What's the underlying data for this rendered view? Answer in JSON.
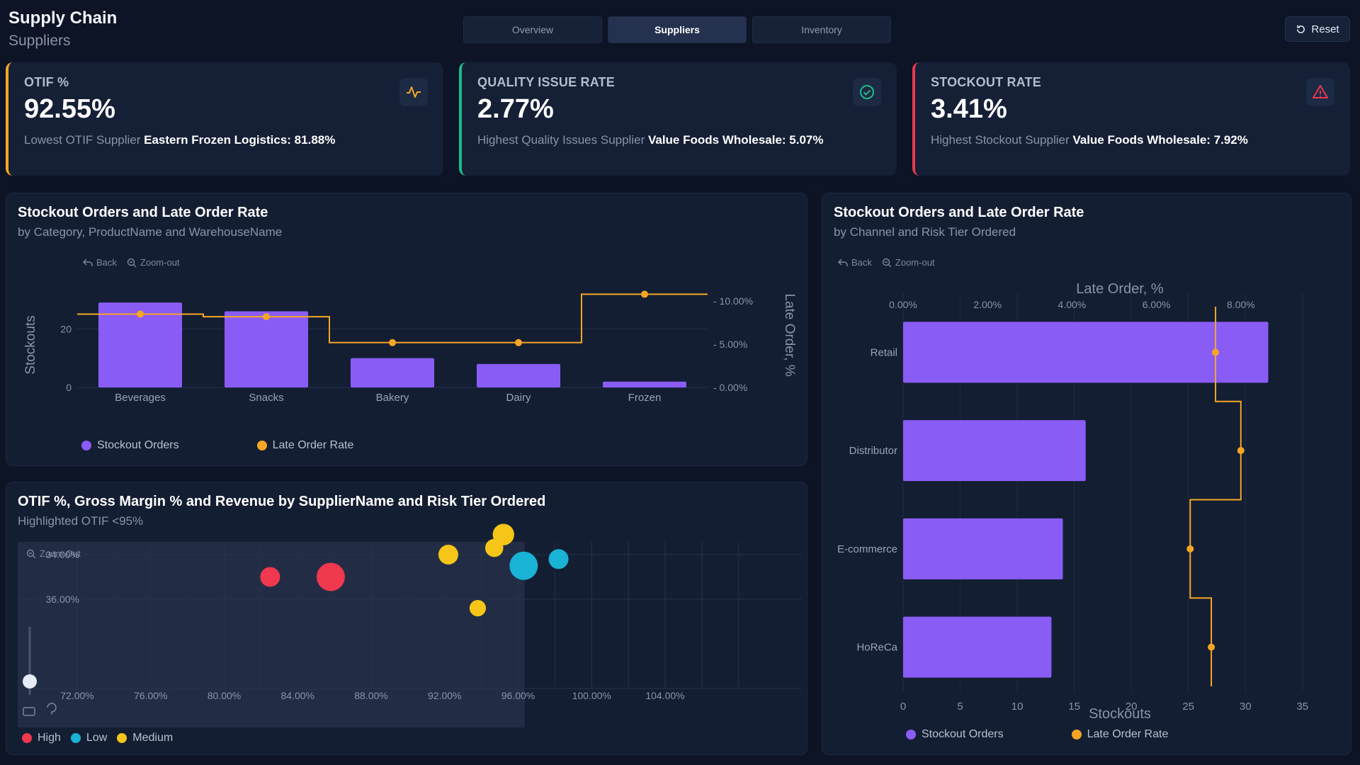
{
  "header": {
    "title": "Supply Chain",
    "subtitle": "Suppliers",
    "tabs": [
      "Overview",
      "Suppliers",
      "Inventory"
    ],
    "active_tab": "Suppliers",
    "reset_label": "Reset"
  },
  "kpis": [
    {
      "label": "OTIF %",
      "value": "92.55%",
      "note_prefix": "Lowest OTIF Supplier",
      "note_value": "Eastern Frozen Logistics: 81.88%",
      "accent": "#f5a623",
      "icon": "pulse-icon"
    },
    {
      "label": "QUALITY ISSUE RATE",
      "value": "2.77%",
      "note_prefix": "Highest Quality Issues Supplier",
      "note_value": "Value Foods Wholesale: 5.07%",
      "accent": "#1fb98a",
      "icon": "check-circle-icon"
    },
    {
      "label": "STOCKOUT RATE",
      "value": "3.41%",
      "note_prefix": "Highest Stockout Supplier",
      "note_value": "Value Foods Wholesale: 7.92%",
      "accent": "#e8384f",
      "icon": "warning-icon"
    }
  ],
  "controls": {
    "back": "Back",
    "zoom_out": "Zoom-out",
    "zoom_out_alt": "Zoom Out"
  },
  "colors": {
    "bar": "#8a5cf6",
    "line": "#f5a623",
    "high": "#f0384f",
    "low": "#19b3d6",
    "medium": "#f5c518"
  },
  "panel_category": {
    "title": "Stockout Orders and Late Order Rate",
    "subtitle": "by Category, ProductName and WarehouseName",
    "legend": [
      "Stockout Orders",
      "Late Order Rate"
    ]
  },
  "panel_channel": {
    "title": "Stockout Orders and Late Order Rate",
    "subtitle": "by Channel and Risk Tier Ordered",
    "legend": [
      "Stockout Orders",
      "Late Order Rate"
    ]
  },
  "panel_scatter": {
    "title": "OTIF %, Gross Margin % and Revenue by SupplierName and Risk Tier Ordered",
    "subtitle": "Highlighted OTIF <95%",
    "legend": [
      "High",
      "Low",
      "Medium"
    ]
  },
  "chart_data": [
    {
      "type": "bar",
      "categories": [
        "Beverages",
        "Snacks",
        "Bakery",
        "Dairy",
        "Frozen"
      ],
      "series": [
        {
          "name": "Stockout Orders",
          "axis": "left",
          "values": [
            29,
            26,
            10,
            8,
            2
          ]
        },
        {
          "name": "Late Order Rate",
          "axis": "right",
          "type": "step-line",
          "values": [
            8.5,
            8.2,
            5.2,
            5.2,
            10.8
          ]
        }
      ],
      "ylabel": "Stockouts",
      "ylabel_right": "Late Order, %",
      "yticks": [
        "0",
        "20"
      ],
      "yticks_right": [
        "0.00%",
        "5.00%",
        "10.00%"
      ],
      "ylim": [
        0,
        30
      ],
      "ylim_right": [
        0,
        11
      ]
    },
    {
      "type": "bar",
      "orientation": "horizontal",
      "categories": [
        "Retail",
        "Distributor",
        "E-commerce",
        "HoReCa"
      ],
      "series": [
        {
          "name": "Stockout Orders",
          "values": [
            32,
            16,
            14,
            13
          ]
        },
        {
          "name": "Late Order Rate",
          "type": "step-line",
          "values": [
            7.4,
            8.0,
            6.8,
            7.3
          ]
        }
      ],
      "xlabel": "Stockouts",
      "xlabel_top": "Late Order, %",
      "xticks": [
        "0",
        "5",
        "10",
        "15",
        "20",
        "25",
        "30",
        "35"
      ],
      "xticks_top": [
        "0.00%",
        "2.00%",
        "4.00%",
        "6.00%",
        "8.00%"
      ],
      "xlim": [
        0,
        37
      ],
      "xlim_top": [
        0,
        10
      ]
    },
    {
      "type": "scatter",
      "xticks": [
        "72.00%",
        "76.00%",
        "80.00%",
        "84.00%",
        "88.00%",
        "92.00%",
        "96.00%",
        "100.00%",
        "104.00%"
      ],
      "yticks": [
        "34.00%",
        "36.00%"
      ],
      "xlim": [
        68,
        108
      ],
      "ylim": [
        32.5,
        37
      ],
      "highlight_max_x": 95,
      "series": [
        {
          "name": "High",
          "points": [
            {
              "x": 82.5,
              "y": 35.0,
              "size": 1
            },
            {
              "x": 85.8,
              "y": 35.0,
              "size": 2
            }
          ]
        },
        {
          "name": "Low",
          "points": [
            {
              "x": 96.3,
              "y": 34.5,
              "size": 2
            },
            {
              "x": 98.2,
              "y": 34.2,
              "size": 1
            }
          ]
        },
        {
          "name": "Medium",
          "points": [
            {
              "x": 93.8,
              "y": 36.4,
              "size": 0.6
            },
            {
              "x": 92.2,
              "y": 34.0,
              "size": 1
            },
            {
              "x": 94.7,
              "y": 33.7,
              "size": 0.8
            },
            {
              "x": 95.2,
              "y": 33.1,
              "size": 1.2
            }
          ]
        }
      ]
    }
  ]
}
